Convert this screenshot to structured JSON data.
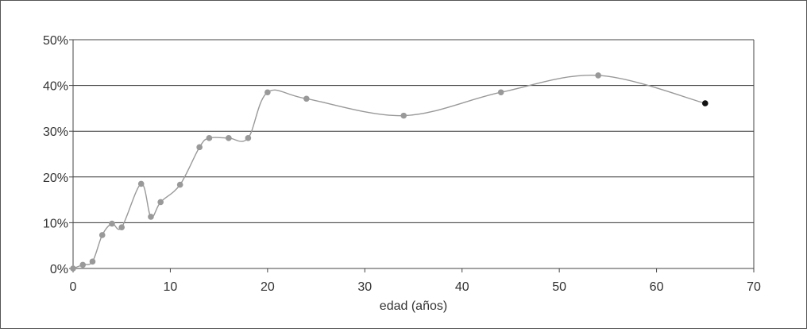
{
  "chart_data": {
    "type": "line",
    "title": "",
    "xlabel": "edad (años)",
    "ylabel": "",
    "xlim": [
      0,
      70
    ],
    "ylim": [
      0,
      50
    ],
    "x_ticks": [
      "0",
      "10",
      "20",
      "30",
      "40",
      "50",
      "60",
      "70"
    ],
    "y_ticks": [
      "0%",
      "10%",
      "20%",
      "30%",
      "40%",
      "50%"
    ],
    "grid": "horizontal",
    "smooth": true,
    "series": [
      {
        "x": [
          0,
          1,
          2,
          3,
          4,
          5,
          7,
          8,
          9,
          11,
          13,
          14,
          16,
          18,
          20,
          24,
          34,
          44,
          54,
          65
        ],
        "values": [
          0,
          0.8,
          1.5,
          7.3,
          9.8,
          9.0,
          18.5,
          11.3,
          14.5,
          18.3,
          26.5,
          28.5,
          28.5,
          28.5,
          38.5,
          37.1,
          33.4,
          38.5,
          42.2,
          36.1
        ],
        "highlight_last": true
      }
    ]
  },
  "colors": {
    "line": "#999999",
    "marker": "#999999",
    "marker_last": "#111111",
    "grid": "#333333",
    "axis": "#444444",
    "text": "#333333"
  }
}
